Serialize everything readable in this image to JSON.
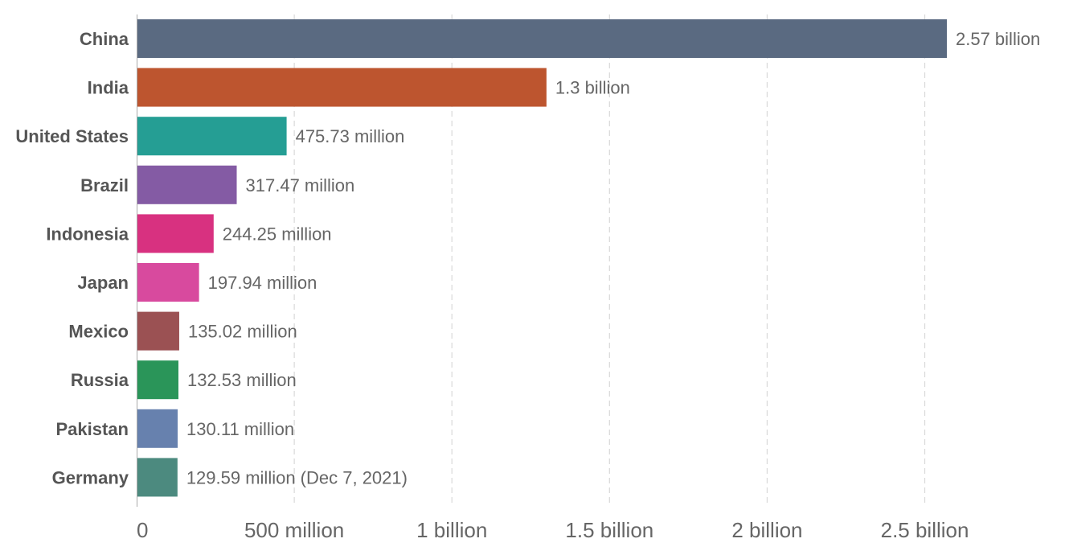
{
  "chart_data": {
    "type": "bar",
    "orientation": "horizontal",
    "title": "",
    "xlabel": "",
    "ylabel": "",
    "xlim": [
      0,
      2570000000
    ],
    "grid": true,
    "legend": "none",
    "categories": [
      "China",
      "India",
      "United States",
      "Brazil",
      "Indonesia",
      "Japan",
      "Mexico",
      "Russia",
      "Pakistan",
      "Germany"
    ],
    "values": [
      2570000000,
      1300000000,
      475730000,
      317470000,
      244250000,
      197940000,
      135020000,
      132530000,
      130110000,
      129590000
    ],
    "value_labels": [
      "2.57 billion",
      "1.3 billion",
      "475.73 million",
      "317.47 million",
      "244.25 million",
      "197.94 million",
      "135.02 million",
      "132.53 million",
      "130.11 million",
      "129.59 million (Dec 7, 2021)"
    ],
    "colors": [
      "#5a6a81",
      "#bd552f",
      "#259e94",
      "#845ba4",
      "#d83180",
      "#d84a9e",
      "#9b5153",
      "#2a9559",
      "#6781ae",
      "#4c8a7f"
    ],
    "x_ticks": [
      {
        "value": 0,
        "label": "0"
      },
      {
        "value": 500000000,
        "label": "500 million"
      },
      {
        "value": 1000000000,
        "label": "1 billion"
      },
      {
        "value": 1500000000,
        "label": "1.5 billion"
      },
      {
        "value": 2000000000,
        "label": "2 billion"
      },
      {
        "value": 2500000000,
        "label": "2.5 billion"
      }
    ]
  }
}
